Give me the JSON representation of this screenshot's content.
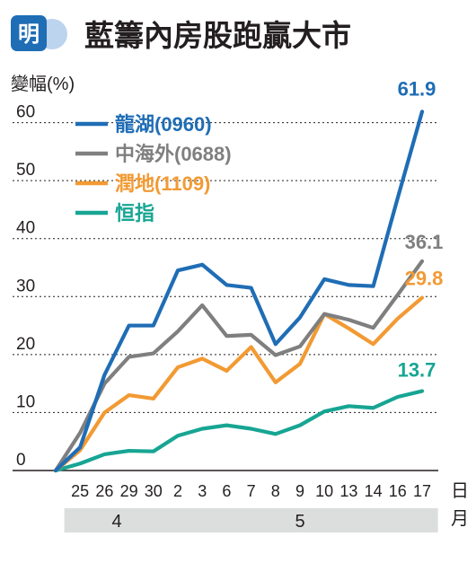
{
  "header": {
    "logo_text": "明",
    "title": "藍籌內房股跑贏大市"
  },
  "chart_data": {
    "type": "line",
    "title": "藍籌內房股跑贏大市",
    "ylabel": "變幅(%)",
    "xlabel_day": "日",
    "xlabel_month": "月",
    "ylim": [
      0,
      70
    ],
    "yticks": [
      0,
      10,
      20,
      30,
      40,
      50,
      60
    ],
    "grid": true,
    "legend_position": "top-left",
    "categories": [
      "",
      "25",
      "26",
      "29",
      "30",
      "2",
      "3",
      "6",
      "7",
      "8",
      "9",
      "10",
      "13",
      "14",
      "16",
      "17"
    ],
    "months": [
      {
        "label": "4",
        "from": 1,
        "to": 4
      },
      {
        "label": "5",
        "from": 5,
        "to": 15
      }
    ],
    "series": [
      {
        "name": "龍湖(0960)",
        "color": "#1f6db5",
        "values": [
          0,
          4,
          16.5,
          25,
          25,
          34.5,
          35.5,
          32,
          31.5,
          21.8,
          26.4,
          33,
          32,
          31.8,
          47,
          61.9
        ],
        "end_label": "61.9"
      },
      {
        "name": "中海外(0688)",
        "color": "#7f7f7f",
        "values": [
          0,
          6.5,
          15,
          19.6,
          20.2,
          24,
          28.5,
          23.2,
          23.4,
          19.9,
          21.4,
          27,
          26,
          24.6,
          30.3,
          36.1
        ],
        "end_label": "36.1"
      },
      {
        "name": "潤地(1109)",
        "color": "#f29a33",
        "values": [
          0,
          3.5,
          10,
          13,
          12.4,
          17.8,
          19.3,
          17.2,
          21.3,
          15.2,
          18.4,
          27,
          24.5,
          21.8,
          26.2,
          29.8
        ],
        "end_label": "29.8"
      },
      {
        "name": "恒指",
        "color": "#17a593",
        "values": [
          0,
          1.2,
          2.8,
          3.4,
          3.3,
          6,
          7.2,
          7.8,
          7.2,
          6.3,
          7.8,
          10.2,
          11.1,
          10.8,
          12.7,
          13.7
        ],
        "end_label": "13.7"
      }
    ]
  }
}
